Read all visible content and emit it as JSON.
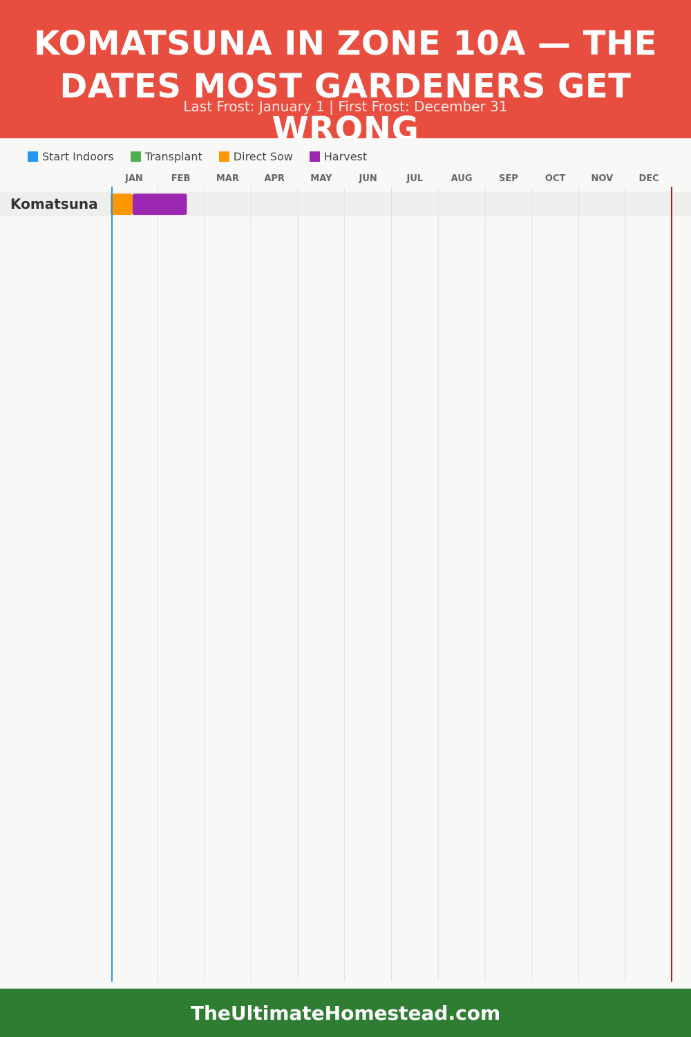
{
  "header": {
    "title": "KOMATSUNA IN ZONE 10A — THE DATES MOST GARDENERS GET WRONG",
    "subtitle": "Last Frost: January 1 | First Frost: December 31"
  },
  "legend": [
    {
      "label": "Start Indoors",
      "color": "#2196f3"
    },
    {
      "label": "Transplant",
      "color": "#4caf50"
    },
    {
      "label": "Direct Sow",
      "color": "#ff9800"
    },
    {
      "label": "Harvest",
      "color": "#9c27b0"
    }
  ],
  "colors": {
    "header_bg": "#e84e3f",
    "footer_bg": "#2e7d32",
    "last_frost_line": "#2196f3",
    "first_frost_line": "#b71c1c"
  },
  "chart_data": {
    "type": "gantt",
    "months": [
      "JAN",
      "FEB",
      "MAR",
      "APR",
      "MAY",
      "JUN",
      "JUL",
      "AUG",
      "SEP",
      "OCT",
      "NOV",
      "DEC"
    ],
    "rows": [
      {
        "crop": "Komatsuna",
        "segments": [
          {
            "activity": "Direct Sow",
            "start_month": 1.0,
            "end_month": 1.47
          },
          {
            "activity": "Harvest",
            "start_month": 1.47,
            "end_month": 2.63
          }
        ]
      }
    ],
    "frost_markers": {
      "last_frost_month": 1.0,
      "first_frost_month": 13.0
    }
  },
  "footer": {
    "site": "TheUltimateHomestead.com"
  }
}
